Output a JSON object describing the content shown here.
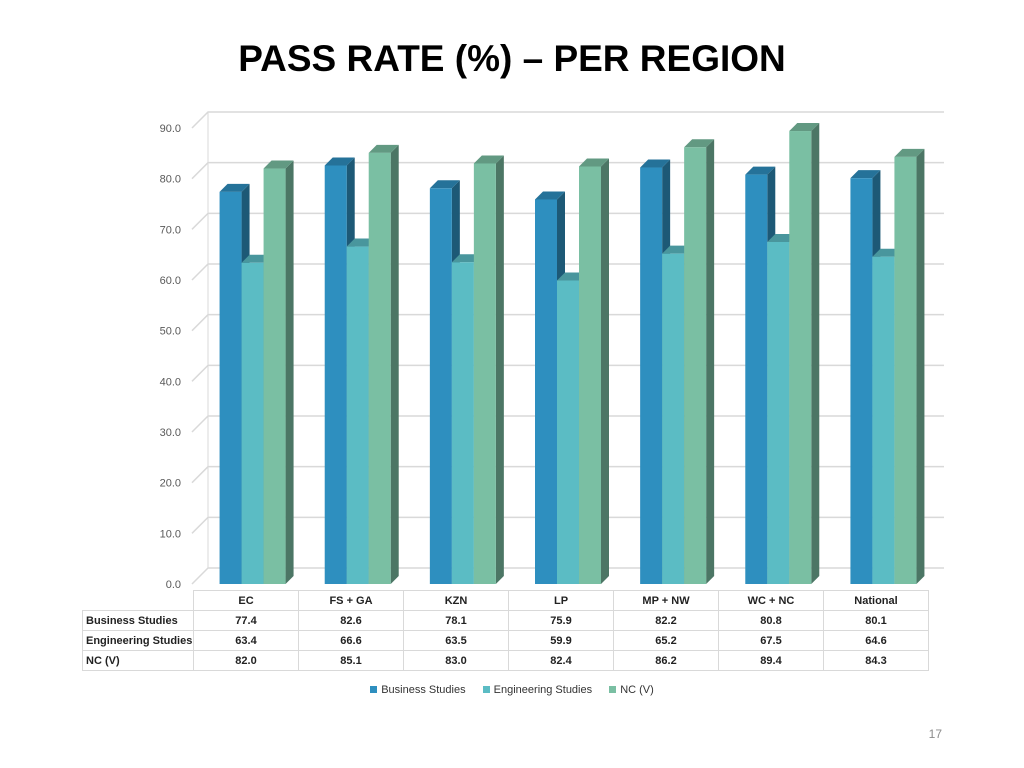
{
  "slide": {
    "title": "PASS RATE (%) – PER REGION",
    "page_number": "17"
  },
  "colors": {
    "business": "#2e8fbf",
    "engineering": "#5bbcc4",
    "ncv": "#7abfa3",
    "grid": "#d9d9d9"
  },
  "chart_data": {
    "type": "bar",
    "title": "",
    "xlabel": "",
    "ylabel": "",
    "ylim": [
      0,
      90
    ],
    "yticks": [
      "0.0",
      "10.0",
      "20.0",
      "30.0",
      "40.0",
      "50.0",
      "60.0",
      "70.0",
      "80.0",
      "90.0"
    ],
    "grid": true,
    "legend_position": "bottom",
    "categories": [
      "EC",
      "FS + GA",
      "KZN",
      "LP",
      "MP + NW",
      "WC + NC",
      "National"
    ],
    "series": [
      {
        "name": "Business Studies",
        "values": [
          77.4,
          82.6,
          78.1,
          75.9,
          82.2,
          80.8,
          80.1
        ],
        "labels": [
          "77.4",
          "82.6",
          "78.1",
          "75.9",
          "82.2",
          "80.8",
          "80.1"
        ]
      },
      {
        "name": "Engineering Studies",
        "values": [
          63.4,
          66.6,
          63.5,
          59.9,
          65.2,
          67.5,
          64.6
        ],
        "labels": [
          "63.4",
          "66.6",
          "63.5",
          "59.9",
          "65.2",
          "67.5",
          "64.6"
        ]
      },
      {
        "name": "NC (V)",
        "values": [
          82.0,
          85.1,
          83.0,
          82.4,
          86.2,
          89.4,
          84.3
        ],
        "labels": [
          "82.0",
          "85.1",
          "83.0",
          "82.4",
          "86.2",
          "89.4",
          "84.3"
        ]
      }
    ]
  }
}
